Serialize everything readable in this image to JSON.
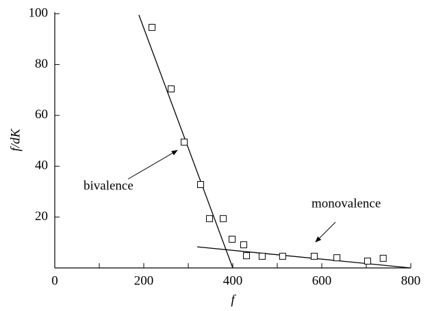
{
  "chart_data": {
    "type": "scatter",
    "x_label": "f",
    "y_label": "f/dK",
    "x": [
      218.5,
      261.5,
      290.8,
      327.7,
      347.7,
      378.5,
      398.5,
      424.6,
      430.8,
      466,
      512,
      583,
      634,
      703,
      738
    ],
    "values": [
      94.6,
      70.4,
      49.5,
      32.8,
      19.4,
      19.4,
      11.3,
      9.1,
      4.8,
      4.6,
      4.6,
      4.6,
      4.0,
      2.7,
      3.8
    ],
    "fits": [
      {
        "x": [
          189,
          400
        ],
        "values": [
          99.5,
          0
        ]
      },
      {
        "x": [
          320,
          800
        ],
        "values": [
          8.3,
          0
        ]
      }
    ],
    "annotations": [
      "bivalence",
      "monovalence"
    ],
    "xlim": [
      0,
      800
    ],
    "ylim": [
      0,
      100
    ],
    "xticks": [
      0,
      200,
      400,
      600,
      800
    ],
    "xminorticks": [
      100,
      300,
      500,
      700
    ],
    "yticks": [
      20,
      40,
      60,
      80,
      100
    ]
  }
}
